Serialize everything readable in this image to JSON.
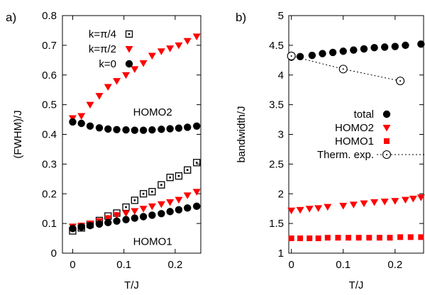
{
  "chart_data": [
    {
      "panel_label": "a)",
      "type": "scatter",
      "xlabel": "T/J",
      "ylabel": "(FWHM)/J",
      "xlim": [
        -0.02,
        0.25
      ],
      "ylim": [
        0,
        0.8
      ],
      "xticks": [
        0,
        0.1,
        0.2
      ],
      "xtick_labels": [
        "0",
        "0.1",
        "0.2"
      ],
      "yticks": [
        0,
        0.1,
        0.2,
        0.3,
        0.4,
        0.5,
        0.6,
        0.7,
        0.8
      ],
      "ytick_labels": [
        "0",
        "0.1",
        "0.2",
        "0.3",
        "0.4",
        "0.5",
        "0.6",
        "0.7",
        "0.8"
      ],
      "grid": false,
      "legend_position": "top-left",
      "annotations": [
        {
          "text": "HOMO2",
          "x": 0.118,
          "y": 0.475
        },
        {
          "text": "HOMO1",
          "x": 0.118,
          "y": 0.04
        }
      ],
      "series": [
        {
          "name": "k=π/4",
          "marker": "open-square",
          "color": "#000000",
          "points": [
            [
              0.0,
              0.075
            ],
            [
              0.017,
              0.085
            ],
            [
              0.034,
              0.097
            ],
            [
              0.052,
              0.11
            ],
            [
              0.069,
              0.125
            ],
            [
              0.086,
              0.135
            ],
            [
              0.104,
              0.155
            ],
            [
              0.121,
              0.178
            ],
            [
              0.138,
              0.2
            ],
            [
              0.155,
              0.207
            ],
            [
              0.173,
              0.23
            ],
            [
              0.19,
              0.255
            ],
            [
              0.207,
              0.26
            ],
            [
              0.224,
              0.28
            ],
            [
              0.242,
              0.305
            ]
          ]
        },
        {
          "name": "k=π/2",
          "marker": "triangle-down",
          "color": "#ff0000",
          "points": [
            [
              0.0,
              0.455
            ],
            [
              0.017,
              0.462
            ],
            [
              0.034,
              0.5
            ],
            [
              0.052,
              0.53
            ],
            [
              0.069,
              0.56
            ],
            [
              0.086,
              0.58
            ],
            [
              0.104,
              0.6
            ],
            [
              0.121,
              0.62
            ],
            [
              0.138,
              0.64
            ],
            [
              0.155,
              0.665
            ],
            [
              0.173,
              0.68
            ],
            [
              0.19,
              0.69
            ],
            [
              0.207,
              0.7
            ],
            [
              0.224,
              0.715
            ],
            [
              0.242,
              0.73
            ],
            [
              0.0,
              0.09
            ],
            [
              0.017,
              0.093
            ],
            [
              0.034,
              0.1
            ],
            [
              0.052,
              0.108
            ],
            [
              0.069,
              0.118
            ],
            [
              0.086,
              0.128
            ],
            [
              0.104,
              0.135
            ],
            [
              0.121,
              0.142
            ],
            [
              0.138,
              0.15
            ],
            [
              0.155,
              0.158
            ],
            [
              0.173,
              0.165
            ],
            [
              0.19,
              0.172
            ],
            [
              0.207,
              0.18
            ],
            [
              0.224,
              0.195
            ],
            [
              0.242,
              0.207
            ]
          ]
        },
        {
          "name": "k=0",
          "marker": "filled-circle",
          "color": "#000000",
          "points": [
            [
              0.0,
              0.442
            ],
            [
              0.017,
              0.437
            ],
            [
              0.034,
              0.428
            ],
            [
              0.052,
              0.422
            ],
            [
              0.069,
              0.418
            ],
            [
              0.086,
              0.416
            ],
            [
              0.104,
              0.415
            ],
            [
              0.121,
              0.414
            ],
            [
              0.138,
              0.414
            ],
            [
              0.155,
              0.415
            ],
            [
              0.173,
              0.417
            ],
            [
              0.19,
              0.419
            ],
            [
              0.207,
              0.421
            ],
            [
              0.224,
              0.424
            ],
            [
              0.242,
              0.428
            ],
            [
              0.0,
              0.083
            ],
            [
              0.017,
              0.088
            ],
            [
              0.034,
              0.093
            ],
            [
              0.052,
              0.098
            ],
            [
              0.069,
              0.103
            ],
            [
              0.086,
              0.108
            ],
            [
              0.104,
              0.113
            ],
            [
              0.121,
              0.118
            ],
            [
              0.138,
              0.123
            ],
            [
              0.155,
              0.128
            ],
            [
              0.173,
              0.133
            ],
            [
              0.19,
              0.14
            ],
            [
              0.207,
              0.146
            ],
            [
              0.224,
              0.152
            ],
            [
              0.242,
              0.158
            ]
          ]
        }
      ]
    },
    {
      "panel_label": "b)",
      "type": "scatter",
      "xlabel": "T/J",
      "ylabel": "bandwidth/J",
      "xlim": [
        -0.005,
        0.255
      ],
      "ylim": [
        1,
        5
      ],
      "xticks": [
        0,
        0.1,
        0.2
      ],
      "xtick_labels": [
        "0",
        "0.1",
        "0.2"
      ],
      "yticks": [
        1,
        1.5,
        2,
        2.5,
        3,
        3.5,
        4,
        4.5,
        5
      ],
      "ytick_labels": [
        "1",
        "1.5",
        "2",
        "2.5",
        "3",
        "3.5",
        "4",
        "4.5",
        "5"
      ],
      "grid": false,
      "legend_position": "center-right",
      "series": [
        {
          "name": "total",
          "marker": "filled-circle",
          "color": "#000000",
          "points": [
            [
              0.0,
              4.3
            ],
            [
              0.017,
              4.31
            ],
            [
              0.04,
              4.33
            ],
            [
              0.06,
              4.36
            ],
            [
              0.08,
              4.38
            ],
            [
              0.1,
              4.4
            ],
            [
              0.12,
              4.42
            ],
            [
              0.14,
              4.44
            ],
            [
              0.16,
              4.46
            ],
            [
              0.18,
              4.47
            ],
            [
              0.2,
              4.48
            ],
            [
              0.22,
              4.5
            ],
            [
              0.25,
              4.52
            ]
          ]
        },
        {
          "name": "HOMO2",
          "marker": "triangle-down",
          "color": "#ff0000",
          "points": [
            [
              0.0,
              1.72
            ],
            [
              0.017,
              1.73
            ],
            [
              0.035,
              1.75
            ],
            [
              0.052,
              1.76
            ],
            [
              0.07,
              1.78
            ],
            [
              0.1,
              1.8
            ],
            [
              0.12,
              1.82
            ],
            [
              0.14,
              1.84
            ],
            [
              0.16,
              1.86
            ],
            [
              0.18,
              1.87
            ],
            [
              0.2,
              1.88
            ],
            [
              0.22,
              1.9
            ],
            [
              0.235,
              1.92
            ],
            [
              0.25,
              1.94
            ]
          ]
        },
        {
          "name": "HOMO1",
          "marker": "filled-square",
          "color": "#ff0000",
          "points": [
            [
              0.0,
              1.25
            ],
            [
              0.017,
              1.25
            ],
            [
              0.035,
              1.25
            ],
            [
              0.052,
              1.25
            ],
            [
              0.07,
              1.26
            ],
            [
              0.09,
              1.26
            ],
            [
              0.11,
              1.26
            ],
            [
              0.13,
              1.26
            ],
            [
              0.15,
              1.26
            ],
            [
              0.17,
              1.26
            ],
            [
              0.19,
              1.26
            ],
            [
              0.21,
              1.27
            ],
            [
              0.23,
              1.27
            ],
            [
              0.25,
              1.27
            ]
          ]
        },
        {
          "name": "Therm. exp.",
          "marker": "open-circle-dotted-line",
          "color": "#000000",
          "points": [
            [
              0.0,
              4.32
            ],
            [
              0.1,
              4.1
            ],
            [
              0.21,
              3.9
            ]
          ]
        }
      ]
    }
  ]
}
